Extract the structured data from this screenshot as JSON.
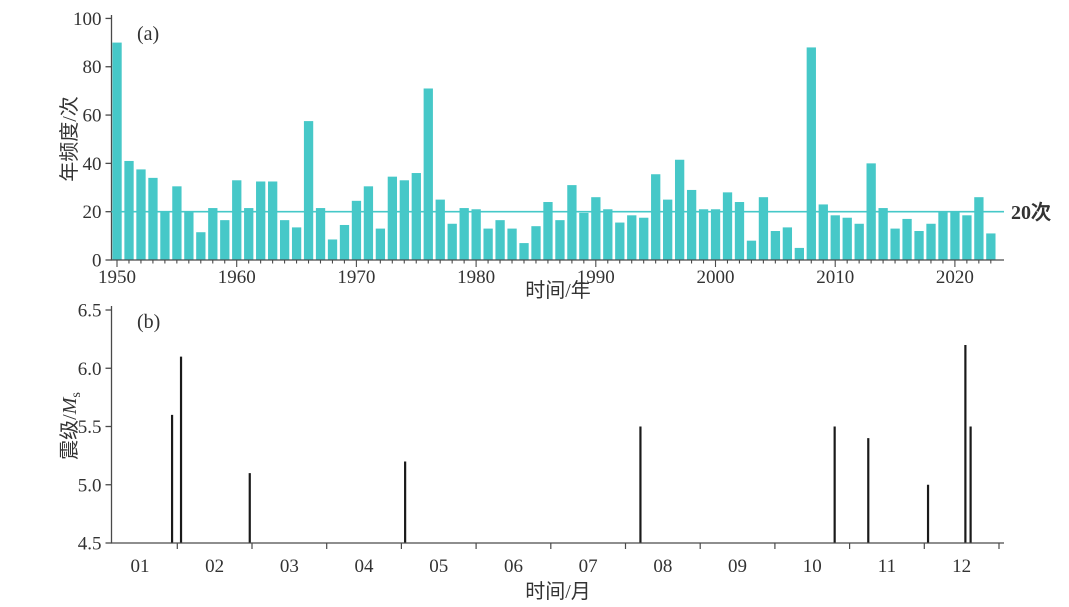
{
  "colors": {
    "bar": "#46c8c8",
    "reference_line": "#46c8c8",
    "reference_label": "#3fbcc6",
    "axis": "#4a4a4a",
    "text": "#333333",
    "stem": "#1a1a1a",
    "background": "#ffffff"
  },
  "panel_a": {
    "label": "(a)",
    "ylabel": "年频度/次",
    "xlabel": "时间/年",
    "reference_label": "20次"
  },
  "panel_b": {
    "label": "(b)",
    "ylabel": "震级/Ms",
    "ylabel_prefix": "震级/",
    "ylabel_symbol": "M",
    "ylabel_subscript": "s",
    "xlabel": "时间/月"
  },
  "chart_data": [
    {
      "panel": "a",
      "type": "bar",
      "title": "",
      "xlabel": "时间/年",
      "ylabel": "年频度/次",
      "categories": [
        1950,
        1951,
        1952,
        1953,
        1954,
        1955,
        1956,
        1957,
        1958,
        1959,
        1960,
        1961,
        1962,
        1963,
        1964,
        1965,
        1966,
        1967,
        1968,
        1969,
        1970,
        1971,
        1972,
        1973,
        1974,
        1975,
        1976,
        1977,
        1978,
        1979,
        1980,
        1981,
        1982,
        1983,
        1984,
        1985,
        1986,
        1987,
        1988,
        1989,
        1990,
        1991,
        1992,
        1993,
        1994,
        1995,
        1996,
        1997,
        1998,
        1999,
        2000,
        2001,
        2002,
        2003,
        2004,
        2005,
        2006,
        2007,
        2008,
        2009,
        2010,
        2011,
        2012,
        2013,
        2014,
        2015,
        2016,
        2017,
        2018,
        2019,
        2020,
        2021,
        2022,
        2023
      ],
      "values": [
        90,
        41,
        37.5,
        34,
        20,
        30.5,
        20,
        11.5,
        21.5,
        16.5,
        33,
        21.5,
        32.5,
        32.5,
        16.5,
        13.5,
        57.5,
        21.5,
        8.5,
        14.5,
        24.5,
        30.5,
        13,
        34.5,
        33,
        36,
        71,
        25,
        15,
        21.5,
        21,
        13,
        16.5,
        13,
        7,
        14,
        24,
        16.5,
        31,
        19.5,
        26,
        21,
        15.5,
        18.5,
        17.5,
        35.5,
        25,
        41.5,
        29,
        21,
        21,
        28,
        24,
        8,
        26,
        12,
        13.5,
        5,
        88,
        23,
        18.5,
        17.5,
        15,
        40,
        21.5,
        13,
        17,
        12,
        15,
        20,
        20,
        18.5,
        26,
        11
      ],
      "ylim": [
        0,
        100
      ],
      "yticks": [
        0,
        20,
        40,
        60,
        80,
        100
      ],
      "xticks": [
        1950,
        1960,
        1970,
        1980,
        1990,
        2000,
        2010,
        2020
      ],
      "reference_line": {
        "y": 20,
        "label": "20次"
      },
      "grid": false,
      "legend": null
    },
    {
      "panel": "b",
      "type": "stem",
      "title": "",
      "xlabel": "时间/月",
      "ylabel": "震级/Ms",
      "ylim": [
        4.5,
        6.5
      ],
      "yticks": [
        4.5,
        5.0,
        5.5,
        6.0,
        6.5
      ],
      "xtick_labels": [
        "01",
        "02",
        "03",
        "04",
        "05",
        "06",
        "07",
        "08",
        "09",
        "10",
        "11",
        "12"
      ],
      "xlim_months": [
        0.6,
        12.5
      ],
      "points": [
        {
          "month": 1.93,
          "magnitude": 5.6
        },
        {
          "month": 2.05,
          "magnitude": 6.1
        },
        {
          "month": 2.97,
          "magnitude": 5.1
        },
        {
          "month": 5.05,
          "magnitude": 5.2
        },
        {
          "month": 8.2,
          "magnitude": 5.5
        },
        {
          "month": 10.8,
          "magnitude": 5.5
        },
        {
          "month": 11.25,
          "magnitude": 5.4
        },
        {
          "month": 12.05,
          "magnitude": 5.0
        },
        {
          "month": 12.55,
          "magnitude": 6.2
        },
        {
          "month": 12.62,
          "magnitude": 5.5
        }
      ],
      "grid": false,
      "legend": null
    }
  ]
}
